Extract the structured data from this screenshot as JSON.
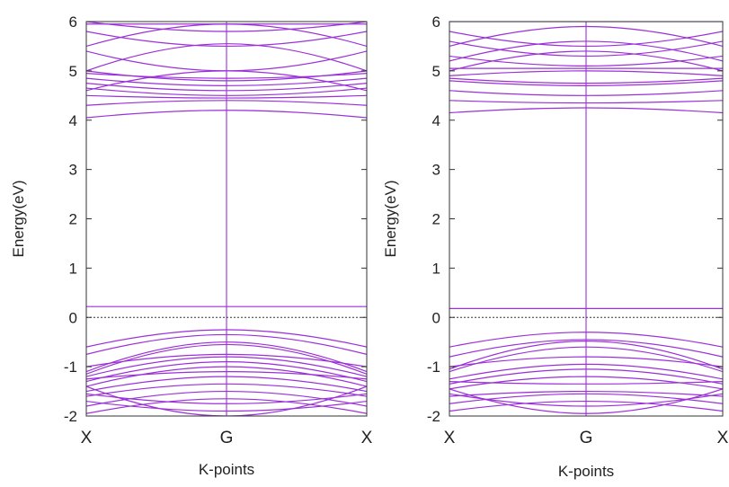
{
  "chart_data": [
    {
      "type": "line",
      "subtype": "band-structure",
      "title": "",
      "xlabel": "K-points",
      "ylabel": "Energy(eV)",
      "ylim": [
        -2,
        6
      ],
      "yticks": [
        -2,
        -1,
        0,
        1,
        2,
        3,
        4,
        5,
        6
      ],
      "kpoint_labels": [
        "X",
        "G",
        "X"
      ],
      "fermi_level": 0,
      "grid": false,
      "line_color": "#9b30d9",
      "fermi_color": "#333333",
      "x": [
        -1,
        0,
        1
      ],
      "series": [
        {
          "values": [
            4.05,
            4.2,
            4.05
          ]
        },
        {
          "values": [
            4.3,
            4.4,
            4.3
          ]
        },
        {
          "values": [
            4.5,
            4.45,
            4.5
          ]
        },
        {
          "values": [
            4.65,
            4.5,
            4.65
          ]
        },
        {
          "values": [
            4.75,
            4.6,
            4.75
          ]
        },
        {
          "values": [
            4.85,
            4.7,
            4.85
          ]
        },
        {
          "values": [
            4.95,
            4.85,
            4.95
          ]
        },
        {
          "values": [
            4.6,
            5.0,
            4.6
          ]
        },
        {
          "values": [
            5.0,
            4.8,
            5.0
          ]
        },
        {
          "values": [
            5.4,
            5.0,
            5.4
          ]
        },
        {
          "values": [
            5.0,
            5.55,
            5.0
          ]
        },
        {
          "values": [
            5.5,
            5.95,
            5.5
          ]
        },
        {
          "values": [
            5.8,
            5.5,
            5.8
          ]
        },
        {
          "values": [
            6.0,
            5.8,
            6.0
          ]
        },
        {
          "values": [
            5.95,
            5.95,
            5.95
          ]
        },
        {
          "values": [
            0.22,
            0.22,
            0.22
          ]
        },
        {
          "values": [
            -0.6,
            -0.25,
            -0.6
          ]
        },
        {
          "values": [
            -0.75,
            -0.35,
            -0.75
          ]
        },
        {
          "values": [
            -1.1,
            -0.5,
            -1.1
          ]
        },
        {
          "values": [
            -1.15,
            -0.55,
            -1.15
          ]
        },
        {
          "values": [
            -1.0,
            -0.75,
            -1.0
          ]
        },
        {
          "values": [
            -1.2,
            -0.8,
            -1.2
          ]
        },
        {
          "values": [
            -1.3,
            -0.9,
            -1.3
          ]
        },
        {
          "values": [
            -1.4,
            -1.0,
            -1.4
          ]
        },
        {
          "values": [
            -1.25,
            -1.1,
            -1.25
          ]
        },
        {
          "values": [
            -1.5,
            -1.2,
            -1.5
          ]
        },
        {
          "values": [
            -1.6,
            -1.35,
            -1.6
          ]
        },
        {
          "values": [
            -1.8,
            -1.5,
            -1.8
          ]
        },
        {
          "values": [
            -1.55,
            -1.75,
            -1.55
          ]
        },
        {
          "values": [
            -1.7,
            -1.9,
            -1.7
          ]
        },
        {
          "values": [
            -1.95,
            -1.65,
            -1.95
          ]
        },
        {
          "values": [
            -1.4,
            -2.0,
            -1.4
          ]
        }
      ]
    },
    {
      "type": "line",
      "subtype": "band-structure",
      "title": "",
      "xlabel": "K-points",
      "ylabel": "Energy(eV)",
      "ylim": [
        -2,
        6
      ],
      "yticks": [
        -2,
        -1,
        0,
        1,
        2,
        3,
        4,
        5,
        6
      ],
      "kpoint_labels": [
        "X",
        "G",
        "X"
      ],
      "fermi_level": 0,
      "grid": false,
      "line_color": "#9b30d9",
      "fermi_color": "#333333",
      "x": [
        -1,
        0,
        1
      ],
      "series": [
        {
          "values": [
            4.15,
            4.25,
            4.15
          ]
        },
        {
          "values": [
            4.4,
            4.35,
            4.4
          ]
        },
        {
          "values": [
            4.6,
            4.5,
            4.6
          ]
        },
        {
          "values": [
            4.8,
            4.7,
            4.8
          ]
        },
        {
          "values": [
            4.85,
            4.75,
            4.85
          ]
        },
        {
          "values": [
            4.9,
            5.0,
            4.9
          ]
        },
        {
          "values": [
            5.05,
            5.05,
            5.05
          ]
        },
        {
          "values": [
            5.3,
            5.1,
            5.3
          ]
        },
        {
          "values": [
            5.0,
            5.4,
            5.0
          ]
        },
        {
          "values": [
            5.2,
            5.6,
            5.2
          ]
        },
        {
          "values": [
            5.6,
            5.3,
            5.6
          ]
        },
        {
          "values": [
            5.8,
            5.5,
            5.8
          ]
        },
        {
          "values": [
            5.5,
            5.9,
            5.5
          ]
        },
        {
          "values": [
            6.0,
            6.0,
            6.0
          ]
        },
        {
          "values": [
            0.18,
            0.18,
            0.18
          ]
        },
        {
          "values": [
            -0.6,
            -0.3,
            -0.6
          ]
        },
        {
          "values": [
            -0.8,
            -0.45,
            -0.8
          ]
        },
        {
          "values": [
            -1.05,
            -0.48,
            -1.05
          ]
        },
        {
          "values": [
            -1.1,
            -0.6,
            -1.1
          ]
        },
        {
          "values": [
            -1.0,
            -0.8,
            -1.0
          ]
        },
        {
          "values": [
            -1.25,
            -0.95,
            -1.25
          ]
        },
        {
          "values": [
            -1.35,
            -1.05,
            -1.35
          ]
        },
        {
          "values": [
            -1.45,
            -1.2,
            -1.45
          ]
        },
        {
          "values": [
            -1.3,
            -1.35,
            -1.3
          ]
        },
        {
          "values": [
            -1.6,
            -1.5,
            -1.6
          ]
        },
        {
          "values": [
            -1.75,
            -1.55,
            -1.75
          ]
        },
        {
          "values": [
            -1.55,
            -1.8,
            -1.55
          ]
        },
        {
          "values": [
            -1.9,
            -1.7,
            -1.9
          ]
        },
        {
          "values": [
            -1.45,
            -1.95,
            -1.45
          ]
        }
      ]
    }
  ]
}
